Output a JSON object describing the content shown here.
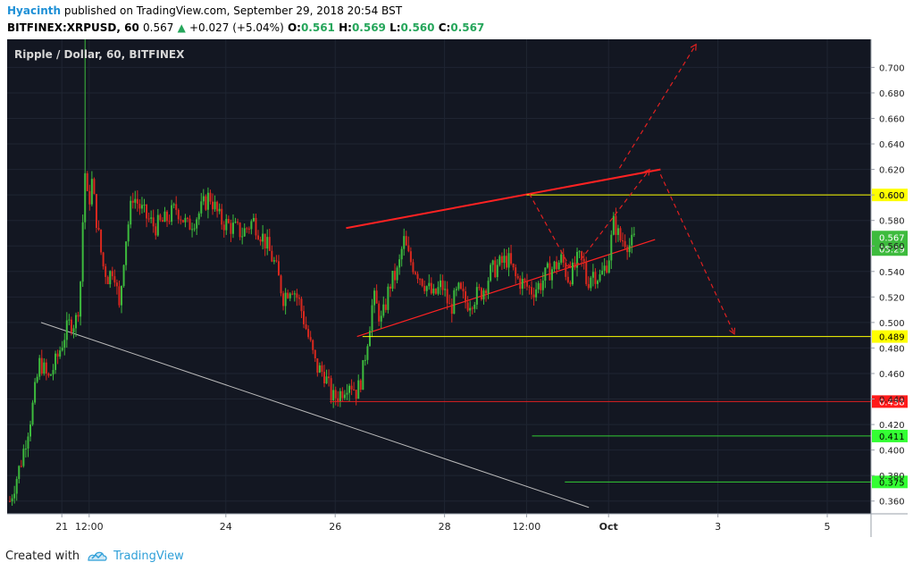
{
  "header": {
    "author": "Hyacinth",
    "published": "published on TradingView.com, September 29, 2018 20:54 BST",
    "symbol": "BITFINEX:XRPUSD, 60",
    "last": "0.567",
    "change": "+0.027 (+5.04%)",
    "o_label": "O:",
    "o_val": "0.561",
    "h_label": "H:",
    "h_val": "0.569",
    "l_label": "L:",
    "l_val": "0.560",
    "c_label": "C:",
    "c_val": "0.567"
  },
  "footer": {
    "created_with": "Created with",
    "brand": "TradingView"
  },
  "chart_data": {
    "type": "candlestick",
    "title": "Ripple / Dollar, 60, BITFINEX",
    "ylim": [
      0.35,
      0.722
    ],
    "y_ticks": [
      "0.360",
      "0.380",
      "0.400",
      "0.420",
      "0.440",
      "0.460",
      "0.480",
      "0.500",
      "0.520",
      "0.540",
      "0.560",
      "0.580",
      "0.600",
      "0.620",
      "0.640",
      "0.660",
      "0.680",
      "0.700"
    ],
    "x_ticks": [
      {
        "label": "21",
        "t": 1.0
      },
      {
        "label": "12:00",
        "t": 1.5
      },
      {
        "label": "24",
        "t": 4.0
      },
      {
        "label": "26",
        "t": 6.0
      },
      {
        "label": "28",
        "t": 8.0
      },
      {
        "label": "12:00",
        "t": 9.5
      },
      {
        "label": "Oct",
        "t": 11.0
      },
      {
        "label": "3",
        "t": 13.0
      },
      {
        "label": "5",
        "t": 15.0
      }
    ],
    "xlim": [
      0.0,
      15.8
    ],
    "colors": {
      "background": "#131722",
      "up": "#3dbb3d",
      "down": "#d9281e",
      "grid": "#1f2532",
      "axis_text": "#222222"
    },
    "price_path": [
      [
        0.05,
        0.36
      ],
      [
        0.25,
        0.39
      ],
      [
        0.45,
        0.43
      ],
      [
        0.6,
        0.47
      ],
      [
        0.75,
        0.455
      ],
      [
        0.9,
        0.47
      ],
      [
        1.05,
        0.49
      ],
      [
        1.15,
        0.5
      ],
      [
        1.25,
        0.5
      ],
      [
        1.33,
        0.52
      ],
      [
        1.42,
        0.62
      ],
      [
        1.48,
        0.59
      ],
      [
        1.55,
        0.61
      ],
      [
        1.65,
        0.575
      ],
      [
        1.75,
        0.545
      ],
      [
        1.85,
        0.535
      ],
      [
        1.95,
        0.545
      ],
      [
        2.05,
        0.51
      ],
      [
        2.15,
        0.56
      ],
      [
        2.3,
        0.6
      ],
      [
        2.5,
        0.585
      ],
      [
        2.7,
        0.575
      ],
      [
        2.9,
        0.58
      ],
      [
        3.1,
        0.59
      ],
      [
        3.3,
        0.575
      ],
      [
        3.5,
        0.585
      ],
      [
        3.7,
        0.6
      ],
      [
        3.9,
        0.58
      ],
      [
        4.1,
        0.575
      ],
      [
        4.3,
        0.57
      ],
      [
        4.5,
        0.58
      ],
      [
        4.7,
        0.565
      ],
      [
        4.9,
        0.545
      ],
      [
        5.05,
        0.52
      ],
      [
        5.2,
        0.53
      ],
      [
        5.35,
        0.515
      ],
      [
        5.5,
        0.49
      ],
      [
        5.65,
        0.465
      ],
      [
        5.8,
        0.46
      ],
      [
        5.95,
        0.44
      ],
      [
        6.1,
        0.445
      ],
      [
        6.25,
        0.455
      ],
      [
        6.4,
        0.445
      ],
      [
        6.5,
        0.46
      ],
      [
        6.6,
        0.49
      ],
      [
        6.7,
        0.52
      ],
      [
        6.85,
        0.5
      ],
      [
        7.0,
        0.53
      ],
      [
        7.15,
        0.54
      ],
      [
        7.25,
        0.565
      ],
      [
        7.35,
        0.55
      ],
      [
        7.5,
        0.54
      ],
      [
        7.65,
        0.53
      ],
      [
        7.8,
        0.52
      ],
      [
        7.95,
        0.53
      ],
      [
        8.1,
        0.51
      ],
      [
        8.25,
        0.525
      ],
      [
        8.4,
        0.515
      ],
      [
        8.55,
        0.52
      ],
      [
        8.7,
        0.525
      ],
      [
        8.85,
        0.54
      ],
      [
        9.0,
        0.545
      ],
      [
        9.15,
        0.55
      ],
      [
        9.3,
        0.535
      ],
      [
        9.45,
        0.53
      ],
      [
        9.6,
        0.525
      ],
      [
        9.75,
        0.53
      ],
      [
        9.9,
        0.54
      ],
      [
        10.05,
        0.545
      ],
      [
        10.15,
        0.55
      ],
      [
        10.25,
        0.535
      ],
      [
        10.35,
        0.54
      ],
      [
        10.45,
        0.55
      ],
      [
        10.55,
        0.545
      ],
      [
        10.6,
        0.53
      ],
      [
        10.7,
        0.54
      ],
      [
        10.85,
        0.535
      ],
      [
        11.0,
        0.55
      ],
      [
        11.1,
        0.58
      ],
      [
        11.2,
        0.565
      ],
      [
        11.3,
        0.565
      ],
      [
        11.4,
        0.56
      ],
      [
        11.5,
        0.567
      ]
    ],
    "levels": [
      {
        "price": 0.6,
        "label": "0.600",
        "color": "#ffff00",
        "label_bg": "#ffff00",
        "label_fg": "#000000",
        "from_t": 9.5
      },
      {
        "price": 0.489,
        "label": "0.489",
        "color": "#ffff00",
        "label_bg": "#ffff00",
        "label_fg": "#000000",
        "from_t": 6.5
      },
      {
        "price": 0.438,
        "label": "0.438",
        "color": "#e02020",
        "label_bg": "#ff1a1a",
        "label_fg": "#ffffff",
        "from_t": 5.9
      },
      {
        "price": 0.411,
        "label": "0.411",
        "color": "#33cc33",
        "label_bg": "#33ff33",
        "label_fg": "#000000",
        "from_t": 9.6
      },
      {
        "price": 0.375,
        "label": "0.375",
        "color": "#33cc33",
        "label_bg": "#33ff33",
        "label_fg": "#000000",
        "from_t": 10.2
      }
    ],
    "current": {
      "price": 0.567,
      "label": "0.567",
      "countdown": "05:29",
      "color": "#3dbb3d"
    },
    "trendlines": [
      {
        "from": [
          0.62,
          0.5
        ],
        "to": [
          10.64,
          0.355
        ],
        "color": "#bbbbbb",
        "width": 1,
        "dash": false
      },
      {
        "from": [
          6.2,
          0.574
        ],
        "to": [
          11.95,
          0.62
        ],
        "color": "#ff2222",
        "width": 2,
        "dash": false
      },
      {
        "from": [
          6.4,
          0.489
        ],
        "to": [
          11.85,
          0.565
        ],
        "color": "#ff2222",
        "width": 1.2,
        "dash": false
      }
    ],
    "arrows": [
      {
        "points": [
          [
            9.55,
            0.601
          ],
          [
            10.3,
            0.543
          ]
        ],
        "color": "#e02020"
      },
      {
        "points": [
          [
            10.4,
            0.544
          ],
          [
            11.75,
            0.62
          ]
        ],
        "color": "#e02020"
      },
      {
        "points": [
          [
            11.2,
            0.621
          ],
          [
            12.6,
            0.718
          ]
        ],
        "color": "#e02020"
      },
      {
        "points": [
          [
            11.95,
            0.616
          ],
          [
            13.3,
            0.491
          ]
        ],
        "color": "#e02020"
      }
    ]
  }
}
